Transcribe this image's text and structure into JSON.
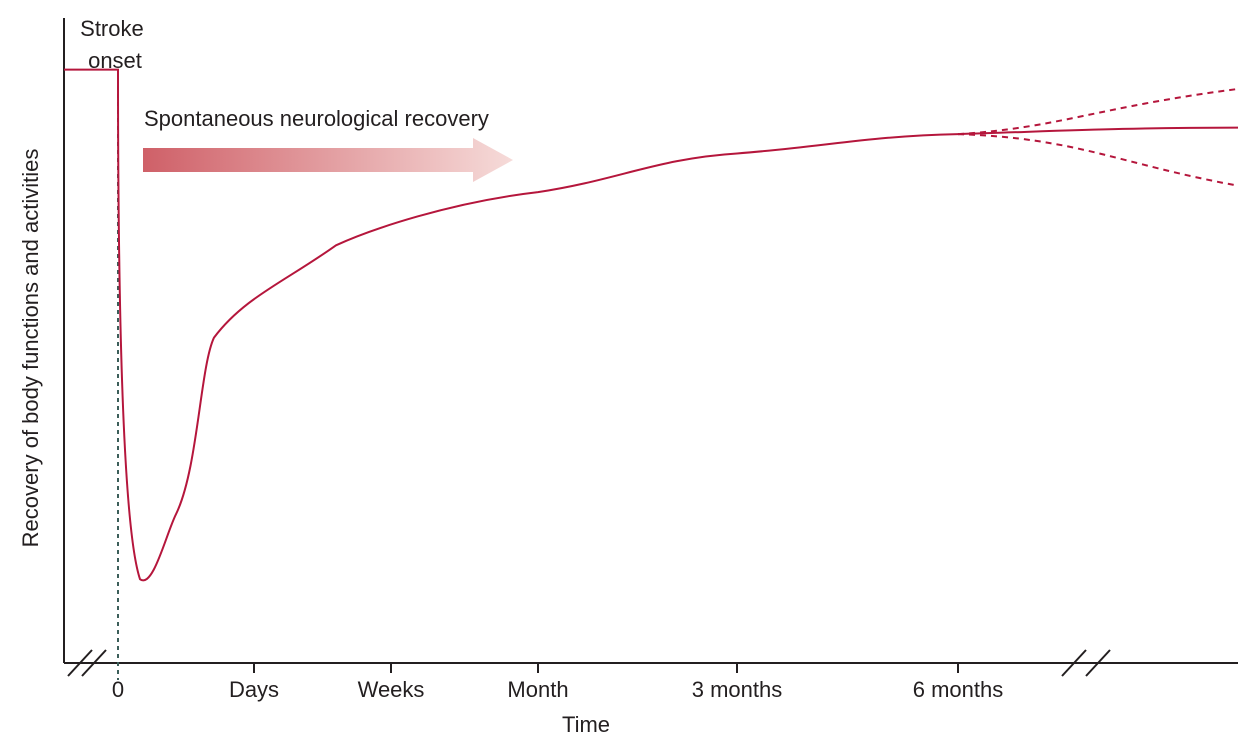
{
  "chart_data": {
    "type": "line",
    "title": "",
    "xlabel": "Time",
    "ylabel": "Recovery of body functions and activities",
    "x_tick_labels": [
      "0",
      "Days",
      "Weeks",
      "Month",
      "3 months",
      "6 months"
    ],
    "x_scale": "ordinal, non-linear",
    "y_ticks": "none",
    "grid": false,
    "annotations": {
      "onset": "Stroke onset",
      "arrow": "Spontaneous neurological recovery"
    },
    "series": [
      {
        "style": "solid",
        "points": [
          {
            "t": "before",
            "level": 0.92
          },
          {
            "t": "0",
            "level": 0.92
          },
          {
            "t": "0",
            "level": 0.13
          },
          {
            "t": "Days",
            "level": 0.52
          },
          {
            "t": "Weeks",
            "level": 0.66
          },
          {
            "t": "Month",
            "level": 0.73
          },
          {
            "t": "3 months",
            "level": 0.79
          },
          {
            "t": "6 months",
            "level": 0.82
          },
          {
            "t": "end",
            "level": 0.83
          }
        ]
      },
      {
        "style": "dashed",
        "note": "upper continuation",
        "points": [
          {
            "t": "6 months",
            "level": 0.82
          },
          {
            "t": "end",
            "level": 0.89
          }
        ]
      },
      {
        "style": "dashed",
        "note": "lower continuation",
        "points": [
          {
            "t": "6 months",
            "level": 0.82
          },
          {
            "t": "end",
            "level": 0.74
          }
        ]
      }
    ],
    "colors": {
      "curve": "#b5163c",
      "arrow_start": "#cf6068",
      "arrow_end": "#f6dbd9",
      "onset_line": "#3c5f5a",
      "axis": "#231f20"
    }
  }
}
